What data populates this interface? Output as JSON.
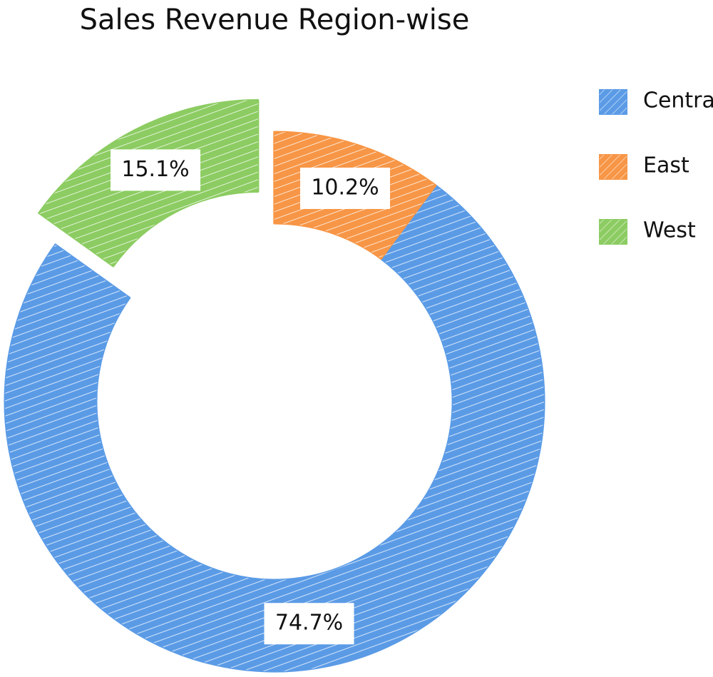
{
  "chart_data": {
    "type": "donut",
    "title": "Sales Revenue Region-wise",
    "categories": [
      "Central",
      "East",
      "West"
    ],
    "values": [
      74.7,
      10.2,
      15.1
    ],
    "value_labels": [
      "74.7%",
      "10.2%",
      "15.1%"
    ],
    "colors": [
      "#5b9be6",
      "#f79646",
      "#8ccc62"
    ],
    "explode": [
      false,
      false,
      true
    ],
    "legend": "right"
  }
}
